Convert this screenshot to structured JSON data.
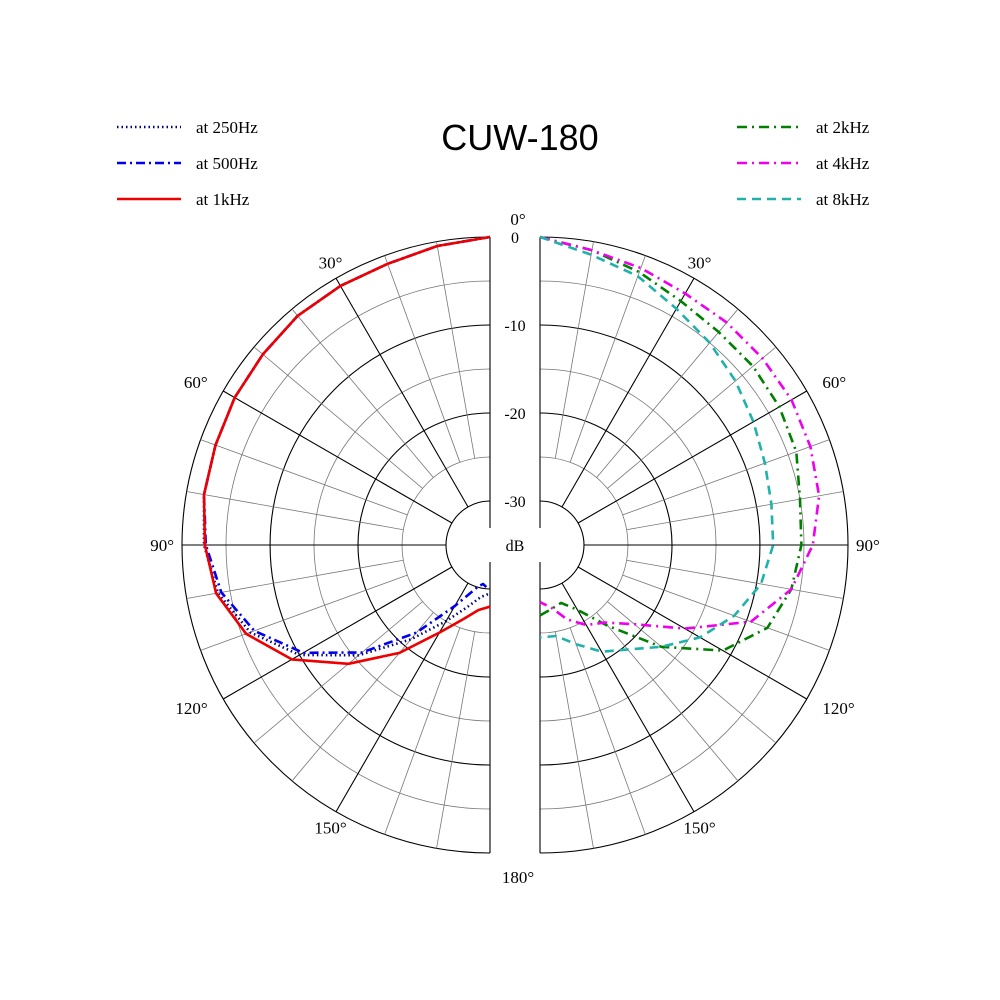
{
  "chart_data": {
    "type": "polar",
    "title": "CUW-180",
    "unit_label": "dB",
    "radial_range": [
      -35,
      0
    ],
    "radial_ticks": [
      {
        "value": 0,
        "label": "0"
      },
      {
        "value": -10,
        "label": "-10"
      },
      {
        "value": -20,
        "label": "-20"
      },
      {
        "value": -30,
        "label": "-30"
      }
    ],
    "angle_labels": [
      {
        "angle": 0,
        "side": "center",
        "label": "0°"
      },
      {
        "angle": 30,
        "side": "left",
        "label": "30°"
      },
      {
        "angle": 30,
        "side": "right",
        "label": "30°"
      },
      {
        "angle": 60,
        "side": "left",
        "label": "60°"
      },
      {
        "angle": 60,
        "side": "right",
        "label": "60°"
      },
      {
        "angle": 90,
        "side": "left",
        "label": "90°"
      },
      {
        "angle": 90,
        "side": "right",
        "label": "90°"
      },
      {
        "angle": 120,
        "side": "left",
        "label": "120°"
      },
      {
        "angle": 120,
        "side": "right",
        "label": "120°"
      },
      {
        "angle": 150,
        "side": "left",
        "label": "150°"
      },
      {
        "angle": 150,
        "side": "right",
        "label": "150°"
      },
      {
        "angle": 180,
        "side": "center",
        "label": "180°"
      }
    ],
    "legend": [
      {
        "series": "at 250Hz",
        "label": "at 250Hz",
        "position": "top-left"
      },
      {
        "series": "at 500Hz",
        "label": "at 500Hz",
        "position": "top-left"
      },
      {
        "series": "at 1kHz",
        "label": "at 1kHz",
        "position": "top-left"
      },
      {
        "series": "at 2kHz",
        "label": "at 2kHz",
        "position": "top-right"
      },
      {
        "series": "at 4kHz",
        "label": "at 4kHz",
        "position": "top-right"
      },
      {
        "series": "at 8kHz",
        "label": "at 8kHz",
        "position": "top-right"
      }
    ],
    "series": [
      {
        "name": "at 250Hz",
        "side": "left",
        "color": "#000080",
        "dash": "dotted",
        "points": [
          [
            0,
            0
          ],
          [
            10,
            -0.5
          ],
          [
            20,
            -1
          ],
          [
            30,
            -1
          ],
          [
            40,
            -1
          ],
          [
            50,
            -1.3
          ],
          [
            60,
            -1.5
          ],
          [
            70,
            -1.8
          ],
          [
            80,
            -2
          ],
          [
            90,
            -2.5
          ],
          [
            100,
            -3.6
          ],
          [
            110,
            -6
          ],
          [
            120,
            -10
          ],
          [
            130,
            -15.5
          ],
          [
            140,
            -21
          ],
          [
            150,
            -25
          ],
          [
            160,
            -27.5
          ],
          [
            170,
            -29
          ],
          [
            180,
            -29.5
          ]
        ]
      },
      {
        "name": "at 500Hz",
        "side": "left",
        "color": "#0000ee",
        "dash": "dashdot",
        "points": [
          [
            0,
            0
          ],
          [
            10,
            -0.5
          ],
          [
            20,
            -1
          ],
          [
            30,
            -1
          ],
          [
            40,
            -1
          ],
          [
            50,
            -1.3
          ],
          [
            60,
            -1.5
          ],
          [
            70,
            -1.8
          ],
          [
            80,
            -2
          ],
          [
            90,
            -2.7
          ],
          [
            100,
            -4
          ],
          [
            110,
            -6.5
          ],
          [
            120,
            -10.5
          ],
          [
            130,
            -16
          ],
          [
            140,
            -22
          ],
          [
            150,
            -27
          ],
          [
            160,
            -29.5
          ],
          [
            165,
            -30.2
          ],
          [
            170,
            -30.5
          ],
          [
            175,
            -30.2
          ]
        ]
      },
      {
        "name": "at 1kHz",
        "side": "left",
        "color": "#ee0000",
        "dash": "solid",
        "points": [
          [
            0,
            0
          ],
          [
            10,
            -0.5
          ],
          [
            20,
            -1
          ],
          [
            30,
            -1
          ],
          [
            40,
            -1
          ],
          [
            50,
            -1.3
          ],
          [
            60,
            -1.5
          ],
          [
            70,
            -1.8
          ],
          [
            80,
            -2
          ],
          [
            90,
            -2.6
          ],
          [
            100,
            -3.4
          ],
          [
            110,
            -5.5
          ],
          [
            120,
            -9
          ],
          [
            130,
            -14
          ],
          [
            140,
            -19
          ],
          [
            150,
            -23.5
          ],
          [
            160,
            -26
          ],
          [
            170,
            -27.5
          ],
          [
            180,
            -28
          ]
        ]
      },
      {
        "name": "at 2kHz",
        "side": "right",
        "color": "#008000",
        "dash": "dashdotlong",
        "points": [
          [
            0,
            0
          ],
          [
            10,
            -1
          ],
          [
            20,
            -2
          ],
          [
            30,
            -3
          ],
          [
            40,
            -3.4
          ],
          [
            50,
            -3.4
          ],
          [
            60,
            -3.6
          ],
          [
            70,
            -4
          ],
          [
            80,
            -5
          ],
          [
            90,
            -5.3
          ],
          [
            100,
            -6
          ],
          [
            110,
            -7.5
          ],
          [
            120,
            -11
          ],
          [
            130,
            -17
          ],
          [
            140,
            -23
          ],
          [
            150,
            -26.5
          ],
          [
            160,
            -28
          ],
          [
            170,
            -27.6
          ],
          [
            180,
            -27
          ]
        ]
      },
      {
        "name": "at 4kHz",
        "side": "right",
        "color": "#ee00ee",
        "dash": "dashdotlong",
        "points": [
          [
            0,
            0
          ],
          [
            10,
            -1
          ],
          [
            20,
            -1.5
          ],
          [
            30,
            -2
          ],
          [
            40,
            -2
          ],
          [
            50,
            -2
          ],
          [
            60,
            -2
          ],
          [
            70,
            -2.3
          ],
          [
            80,
            -2.8
          ],
          [
            90,
            -4
          ],
          [
            100,
            -6
          ],
          [
            110,
            -9.5
          ],
          [
            120,
            -16
          ],
          [
            130,
            -21
          ],
          [
            140,
            -23.5
          ],
          [
            150,
            -24.5
          ],
          [
            160,
            -26
          ],
          [
            170,
            -27.8
          ],
          [
            180,
            -28.5
          ]
        ]
      },
      {
        "name": "at 8kHz",
        "side": "right",
        "color": "#20b2aa",
        "dash": "dashed",
        "points": [
          [
            0,
            0
          ],
          [
            10,
            -1.5
          ],
          [
            20,
            -2.5
          ],
          [
            30,
            -4
          ],
          [
            40,
            -5
          ],
          [
            50,
            -6
          ],
          [
            60,
            -7
          ],
          [
            70,
            -7.8
          ],
          [
            80,
            -8.3
          ],
          [
            90,
            -8.5
          ],
          [
            100,
            -9.5
          ],
          [
            110,
            -11.5
          ],
          [
            120,
            -14
          ],
          [
            130,
            -17
          ],
          [
            140,
            -19.5
          ],
          [
            150,
            -21
          ],
          [
            160,
            -23
          ],
          [
            170,
            -24.5
          ],
          [
            180,
            -24.5
          ]
        ]
      }
    ]
  }
}
